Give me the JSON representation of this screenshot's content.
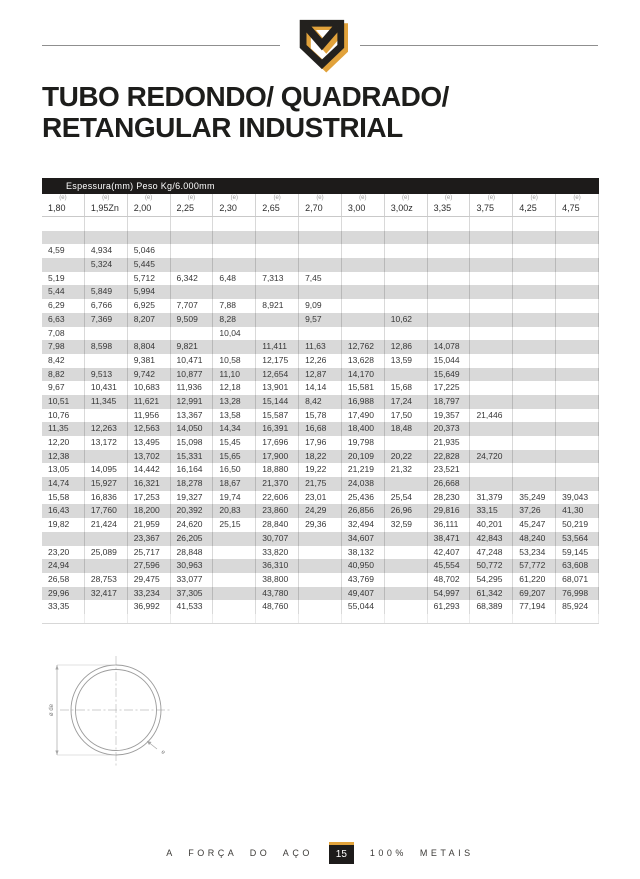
{
  "brand": {
    "logo_name": "metais-shield-emblem",
    "gold": "#e1a23b",
    "dark": "#23211e"
  },
  "title": "TUBO REDONDO/ QUADRADO/\nRETANGULAR INDUSTRIAL",
  "table": {
    "band_label": "Espessura(mm) Peso Kg/6.000mm",
    "col_sup": "(e)",
    "columns": [
      "1,80",
      "1,95Zn",
      "2,00",
      "2,25",
      "2,30",
      "2,65",
      "2,70",
      "3,00",
      "3,00z",
      "3,35",
      "3,75",
      "4,25",
      "4,75"
    ],
    "rows": [
      [
        "",
        "",
        "",
        "",
        "",
        "",
        "",
        "",
        "",
        "",
        "",
        "",
        ""
      ],
      [
        "",
        "",
        "",
        "",
        "",
        "",
        "",
        "",
        "",
        "",
        "",
        "",
        ""
      ],
      [
        "4,59",
        "4,934",
        "5,046",
        "",
        "",
        "",
        "",
        "",
        "",
        "",
        "",
        "",
        ""
      ],
      [
        "",
        "5,324",
        "5,445",
        "",
        "",
        "",
        "",
        "",
        "",
        "",
        "",
        "",
        ""
      ],
      [
        "5,19",
        "",
        "5,712",
        "6,342",
        "6,48",
        "7,313",
        "7,45",
        "",
        "",
        "",
        "",
        "",
        ""
      ],
      [
        "5,44",
        "5,849",
        "5,994",
        "",
        "",
        "",
        "",
        "",
        "",
        "",
        "",
        "",
        ""
      ],
      [
        "6,29",
        "6,766",
        "6,925",
        "7,707",
        "7,88",
        "8,921",
        "9,09",
        "",
        "",
        "",
        "",
        "",
        ""
      ],
      [
        "6,63",
        "7,369",
        "8,207",
        "9,509",
        "8,28",
        "",
        "9,57",
        "",
        "10,62",
        "",
        "",
        "",
        ""
      ],
      [
        "7,08",
        "",
        "",
        "",
        "10,04",
        "",
        "",
        "",
        "",
        "",
        "",
        "",
        ""
      ],
      [
        "7,98",
        "8,598",
        "8,804",
        "9,821",
        "",
        "11,411",
        "11,63",
        "12,762",
        "12,86",
        "14,078",
        "",
        "",
        ""
      ],
      [
        "8,42",
        "",
        "9,381",
        "10,471",
        "10,58",
        "12,175",
        "12,26",
        "13,628",
        "13,59",
        "15,044",
        "",
        "",
        ""
      ],
      [
        "8,82",
        "9,513",
        "9,742",
        "10,877",
        "11,10",
        "12,654",
        "12,87",
        "14,170",
        "",
        "15,649",
        "",
        "",
        ""
      ],
      [
        "9,67",
        "10,431",
        "10,683",
        "11,936",
        "12,18",
        "13,901",
        "14,14",
        "15,581",
        "15,68",
        "17,225",
        "",
        "",
        ""
      ],
      [
        "10,51",
        "11,345",
        "11,621",
        "12,991",
        "13,28",
        "15,144",
        "8,42",
        "16,988",
        "17,24",
        "18,797",
        "",
        "",
        ""
      ],
      [
        "10,76",
        "",
        "11,956",
        "13,367",
        "13,58",
        "15,587",
        "15,78",
        "17,490",
        "17,50",
        "19,357",
        "21,446",
        "",
        ""
      ],
      [
        "11,35",
        "12,263",
        "12,563",
        "14,050",
        "14,34",
        "16,391",
        "16,68",
        "18,400",
        "18,48",
        "20,373",
        "",
        "",
        ""
      ],
      [
        "12,20",
        "13,172",
        "13,495",
        "15,098",
        "15,45",
        "17,696",
        "17,96",
        "19,798",
        "",
        "21,935",
        "",
        "",
        ""
      ],
      [
        "12,38",
        "",
        "13,702",
        "15,331",
        "15,65",
        "17,900",
        "18,22",
        "20,109",
        "20,22",
        "22,828",
        "24,720",
        "",
        ""
      ],
      [
        "13,05",
        "14,095",
        "14,442",
        "16,164",
        "16,50",
        "18,880",
        "19,22",
        "21,219",
        "21,32",
        "23,521",
        "",
        "",
        ""
      ],
      [
        "14,74",
        "15,927",
        "16,321",
        "18,278",
        "18,67",
        "21,370",
        "21,75",
        "24,038",
        "",
        "26,668",
        "",
        "",
        ""
      ],
      [
        "15,58",
        "16,836",
        "17,253",
        "19,327",
        "19,74",
        "22,606",
        "23,01",
        "25,436",
        "25,54",
        "28,230",
        "31,379",
        "35,249",
        "39,043"
      ],
      [
        "16,43",
        "17,760",
        "18,200",
        "20,392",
        "20,83",
        "23,860",
        "24,29",
        "26,856",
        "26,96",
        "29,816",
        "33,15",
        "37,26",
        "41,30"
      ],
      [
        "19,82",
        "21,424",
        "21,959",
        "24,620",
        "25,15",
        "28,840",
        "29,36",
        "32,494",
        "32,59",
        "36,111",
        "40,201",
        "45,247",
        "50,219"
      ],
      [
        "",
        "",
        "23,367",
        "26,205",
        "",
        "30,707",
        "",
        "34,607",
        "",
        "38,471",
        "42,843",
        "48,240",
        "53,564"
      ],
      [
        "23,20",
        "25,089",
        "25,717",
        "28,848",
        "",
        "33,820",
        "",
        "38,132",
        "",
        "42,407",
        "47,248",
        "53,234",
        "59,145"
      ],
      [
        "24,94",
        "",
        "27,596",
        "30,963",
        "",
        "36,310",
        "",
        "40,950",
        "",
        "45,554",
        "50,772",
        "57,772",
        "63,608"
      ],
      [
        "26,58",
        "28,753",
        "29,475",
        "33,077",
        "",
        "38,800",
        "",
        "43,769",
        "",
        "48,702",
        "54,295",
        "61,220",
        "68,071"
      ],
      [
        "29,96",
        "32,417",
        "33,234",
        "37,305",
        "",
        "43,780",
        "",
        "49,407",
        "",
        "54,997",
        "61,342",
        "69,207",
        "76,998"
      ],
      [
        "33,35",
        "",
        "36,992",
        "41,533",
        "",
        "48,760",
        "",
        "55,044",
        "",
        "61,293",
        "68,389",
        "77,194",
        "85,924"
      ]
    ]
  },
  "diagram": {
    "diameter_label": "ø de",
    "wall_label": "e"
  },
  "footer": {
    "left_text": "A FORÇA DO AÇO",
    "page_number": "15",
    "right_text": "100% METAIS"
  }
}
